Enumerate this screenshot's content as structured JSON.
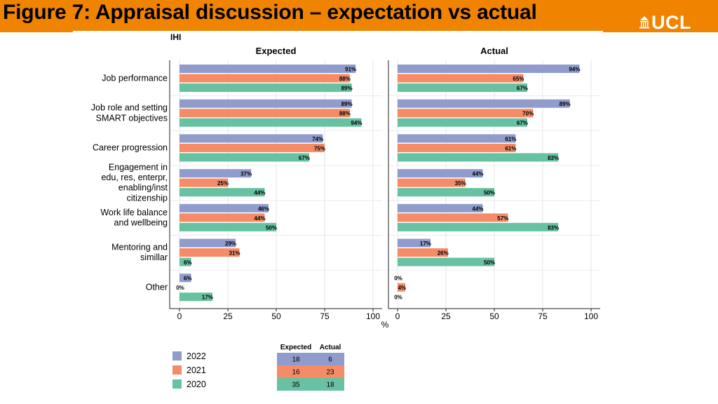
{
  "slide": {
    "title": "Figure 7: Appraisal discussion – expectation vs actual",
    "logo_text": "UCL"
  },
  "colors": {
    "header_bg": "#f08300",
    "series_2022": "#8f9ccc",
    "series_2021": "#f68b67",
    "series_2020": "#66c2a0"
  },
  "chart_data": {
    "type": "bar",
    "orientation": "horizontal",
    "title": "IHI",
    "panels": [
      "Expected",
      "Actual"
    ],
    "xlabel": "%",
    "xlim": [
      0,
      100
    ],
    "xticks": [
      0,
      25,
      50,
      75,
      100
    ],
    "categories": [
      [
        "Job performance"
      ],
      [
        "Job role and setting",
        "SMART objectives"
      ],
      [
        "Career progression"
      ],
      [
        "Engagement in",
        "edu, res, enterpr,",
        "enabling/inst",
        "citizenship"
      ],
      [
        "Work life balance",
        "and wellbeing"
      ],
      [
        "Mentoring and",
        "simillar"
      ],
      [
        "Other"
      ]
    ],
    "series": [
      {
        "name": "2022",
        "color": "#8f9ccc",
        "expected": [
          91,
          89,
          74,
          37,
          46,
          29,
          6
        ],
        "actual": [
          94,
          89,
          61,
          44,
          44,
          17,
          0
        ]
      },
      {
        "name": "2021",
        "color": "#f68b67",
        "expected": [
          88,
          88,
          75,
          25,
          44,
          31,
          0
        ],
        "actual": [
          65,
          70,
          61,
          35,
          57,
          26,
          4
        ]
      },
      {
        "name": "2020",
        "color": "#66c2a0",
        "expected": [
          89,
          94,
          67,
          44,
          50,
          6,
          17
        ],
        "actual": [
          67,
          67,
          83,
          50,
          83,
          50,
          0
        ]
      }
    ],
    "legend": [
      "2022",
      "2021",
      "2020"
    ],
    "counts_table": {
      "headers": [
        "Expected",
        "Actual"
      ],
      "rows": [
        {
          "year": "2022",
          "expected": "18",
          "actual": "6"
        },
        {
          "year": "2021",
          "expected": "16",
          "actual": "23"
        },
        {
          "year": "2020",
          "expected": "35",
          "actual": "18"
        }
      ]
    }
  }
}
